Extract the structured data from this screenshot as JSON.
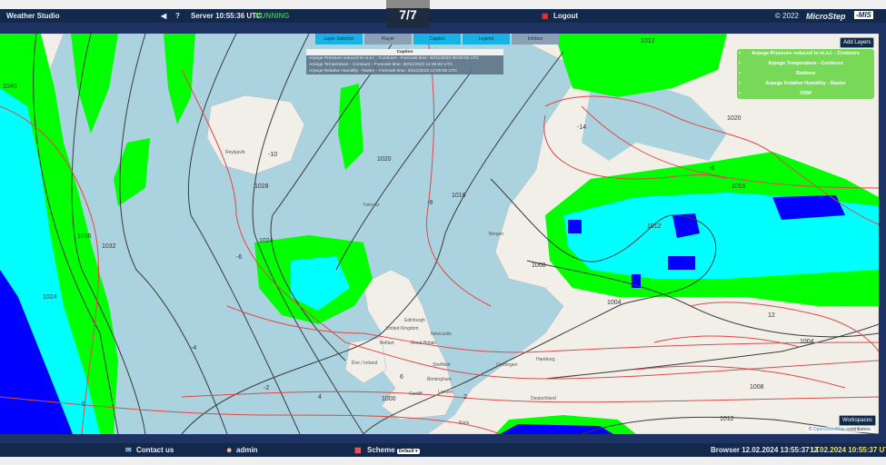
{
  "header": {
    "app_title": "Weather Studio",
    "back_icon": "arrow-left-icon",
    "help": "?",
    "server_label": "Server 10:55:36 UTC",
    "server_status": "RUNNING",
    "status_color": "#22c522",
    "logout": "Logout",
    "copyright": "© 2022",
    "brand": "MicroStep",
    "brand_suffix": "-MIS"
  },
  "counter": "7/7",
  "panel_tabs": [
    "Layer Switcher",
    "Player",
    "Caption",
    "Legend",
    "Infobox"
  ],
  "caption": {
    "title": "Caption",
    "lines": [
      "Arpege Pressure reduced to m.s.l. - Contours - Forecast time: 30/11/2023 00:00:00 UTC",
      "Arpege Temperature - Contours - Forecast time: 30/11/2023 12:00:00 UTC",
      "Arpege Relative Humidity - Raster - Forecast time: 30/11/2023 12:00:00 UTC"
    ]
  },
  "add_layers": "Add Layers",
  "layers": [
    "Arpege Pressure reduced to m.s.l. - Contours",
    "Arpege Temperature - Contours",
    "Stations",
    "Arpege Relative Humidity - Raster",
    "OSM"
  ],
  "workspaces": "Workspaces",
  "attribution": {
    "prefix": "©",
    "link": "OpenStreetMap",
    "suffix": "contributors."
  },
  "map": {
    "pressure_labels": [
      "1040",
      "1036",
      "1032",
      "1028",
      "1024",
      "1020",
      "1016",
      "1012",
      "1008",
      "1004",
      "1000",
      "1024",
      "1020",
      "1016",
      "1012",
      "1008",
      "1012",
      "1004"
    ],
    "temperature_labels": [
      "-6",
      "-10",
      "-8",
      "-4",
      "-2",
      "0",
      "6",
      "4",
      "-14",
      "12",
      "-6",
      "2"
    ],
    "places": [
      "Reykjavík",
      "Føroyar",
      "Bergen",
      "Edinburgh",
      "United Kingdom",
      "Newcastle",
      "Belfast",
      "Great Britain",
      "Éire / Ireland",
      "Sheffield",
      "Birmingham",
      "Cardiff",
      "London",
      "Groningen",
      "Hamburg",
      "Deutschland",
      "Paris"
    ],
    "colors": {
      "sea": "#aad3df",
      "land": "#f2efe9",
      "rh_high": "#00ff00",
      "rh_higher": "#00ffff",
      "rh_max": "#0000ff",
      "pressure": "#333333",
      "temperature": "#e04040"
    }
  },
  "footer": {
    "contact": "Contact us",
    "user": "admin",
    "scheme_label": "Scheme",
    "scheme_value": "Default",
    "browser_time": "Browser 12.02.2024 13:55:37 LT",
    "utc_time": "12.02.2024 10:55:37 UTC"
  }
}
